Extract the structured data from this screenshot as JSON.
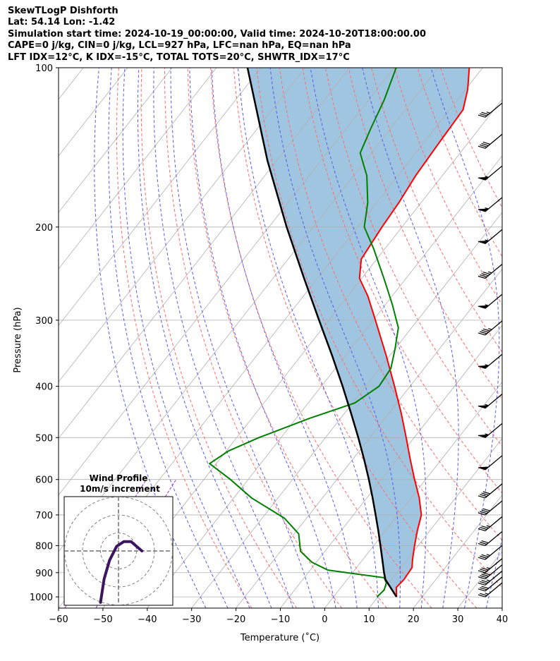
{
  "header": {
    "line1": "SkewTLogP Dishforth",
    "line2": "Lat: 54.14   Lon: -1.42",
    "line3": "Simulation start time: 2024-10-19_00:00:00, Valid time: 2024-10-20T18:00:00.00",
    "line4": "CAPE=0 j/kg, CIN=0 j/kg, LCL=927 hPa, LFC=nan hPa, EQ=nan hPa",
    "line5": "LFT IDX=12°C, K IDX=-15°C, TOTAL TOTS=20°C, SHWTR_IDX=17°C"
  },
  "colors": {
    "temperature": "#ff0000",
    "dewpoint": "#008000",
    "parcel": "#000000",
    "shade": "#a0c5e0",
    "dry_adiabat": "#ff6b6b",
    "moist_adiabat": "#5a5af0",
    "mixing_ratio": "#9b30d0",
    "isotherm": "#b0b0b0",
    "hodograph": "#3b1560"
  },
  "chart_data": {
    "type": "skew-t log-p",
    "xlabel": "Temperature (˚C)",
    "ylabel": "Pressure (hPa)",
    "xlim": [
      -60,
      40
    ],
    "ylim": [
      1050,
      100
    ],
    "x_ticks": [
      "−60",
      "−50",
      "−40",
      "−30",
      "−20",
      "−10",
      "0",
      "10",
      "20",
      "30",
      "40"
    ],
    "x_tick_values": [
      -60,
      -50,
      -40,
      -30,
      -20,
      -10,
      0,
      10,
      20,
      30,
      40
    ],
    "y_ticks": [
      "100",
      "200",
      "300",
      "400",
      "500",
      "600",
      "700",
      "800",
      "900",
      "1000"
    ],
    "y_tick_values": [
      100,
      200,
      300,
      400,
      500,
      600,
      700,
      800,
      900,
      1000
    ],
    "grid": true,
    "temperature_profile": [
      {
        "p": 1000,
        "t": 14.2
      },
      {
        "p": 960,
        "t": 12.5
      },
      {
        "p": 927,
        "t": 12.8
      },
      {
        "p": 880,
        "t": 12.5
      },
      {
        "p": 850,
        "t": 11.2
      },
      {
        "p": 800,
        "t": 9.2
      },
      {
        "p": 750,
        "t": 7.2
      },
      {
        "p": 700,
        "t": 5.3
      },
      {
        "p": 650,
        "t": 1.8
      },
      {
        "p": 600,
        "t": -2.5
      },
      {
        "p": 550,
        "t": -7.0
      },
      {
        "p": 500,
        "t": -11.8
      },
      {
        "p": 450,
        "t": -17.2
      },
      {
        "p": 400,
        "t": -23.5
      },
      {
        "p": 350,
        "t": -30.8
      },
      {
        "p": 300,
        "t": -39.5
      },
      {
        "p": 270,
        "t": -45.5
      },
      {
        "p": 250,
        "t": -50.5
      },
      {
        "p": 230,
        "t": -53.5
      },
      {
        "p": 200,
        "t": -54.5
      },
      {
        "p": 180,
        "t": -55.0
      },
      {
        "p": 160,
        "t": -56.0
      },
      {
        "p": 140,
        "t": -56.5
      },
      {
        "p": 120,
        "t": -57.0
      },
      {
        "p": 110,
        "t": -59.5
      },
      {
        "p": 100,
        "t": -63.0
      }
    ],
    "dewpoint_profile": [
      {
        "p": 1000,
        "t": 9.8
      },
      {
        "p": 970,
        "t": 10.2
      },
      {
        "p": 940,
        "t": 9.4
      },
      {
        "p": 920,
        "t": 8.0
      },
      {
        "p": 890,
        "t": -6.0
      },
      {
        "p": 860,
        "t": -11.0
      },
      {
        "p": 820,
        "t": -15.5
      },
      {
        "p": 760,
        "t": -19.0
      },
      {
        "p": 710,
        "t": -25.0
      },
      {
        "p": 650,
        "t": -36.0
      },
      {
        "p": 600,
        "t": -44.0
      },
      {
        "p": 560,
        "t": -51.5
      },
      {
        "p": 530,
        "t": -49.5
      },
      {
        "p": 500,
        "t": -45.0
      },
      {
        "p": 460,
        "t": -37.0
      },
      {
        "p": 430,
        "t": -29.5
      },
      {
        "p": 400,
        "t": -27.0
      },
      {
        "p": 370,
        "t": -27.5
      },
      {
        "p": 340,
        "t": -30.0
      },
      {
        "p": 310,
        "t": -33.0
      },
      {
        "p": 280,
        "t": -38.5
      },
      {
        "p": 250,
        "t": -45.0
      },
      {
        "p": 220,
        "t": -52.5
      },
      {
        "p": 200,
        "t": -58.5
      },
      {
        "p": 180,
        "t": -62.0
      },
      {
        "p": 160,
        "t": -67.0
      },
      {
        "p": 145,
        "t": -72.5
      },
      {
        "p": 130,
        "t": -74.5
      },
      {
        "p": 115,
        "t": -76.5
      },
      {
        "p": 100,
        "t": -79.5
      }
    ],
    "parcel_profile": [
      {
        "p": 1000,
        "t": 14.2
      },
      {
        "p": 927,
        "t": 8.6
      },
      {
        "p": 900,
        "t": 7.1
      },
      {
        "p": 850,
        "t": 4.4
      },
      {
        "p": 800,
        "t": 1.5
      },
      {
        "p": 750,
        "t": -1.6
      },
      {
        "p": 700,
        "t": -5.0
      },
      {
        "p": 650,
        "t": -8.7
      },
      {
        "p": 600,
        "t": -12.8
      },
      {
        "p": 550,
        "t": -17.4
      },
      {
        "p": 500,
        "t": -22.6
      },
      {
        "p": 450,
        "t": -28.5
      },
      {
        "p": 400,
        "t": -35.2
      },
      {
        "p": 350,
        "t": -43.0
      },
      {
        "p": 300,
        "t": -52.2
      },
      {
        "p": 250,
        "t": -63.0
      },
      {
        "p": 200,
        "t": -76.0
      },
      {
        "p": 150,
        "t": -92.0
      },
      {
        "p": 100,
        "t": -113.0
      }
    ],
    "dry_adiabats_theta_c": [
      -20,
      -10,
      0,
      10,
      20,
      30,
      40,
      50,
      60,
      70,
      80,
      90,
      100,
      110,
      120
    ],
    "moist_adiabats_start_c": [
      -30,
      -25,
      -20,
      -15,
      -10,
      -5,
      0,
      5,
      10,
      15,
      20,
      25,
      30,
      35
    ],
    "mixing_ratio_lines_t1000_c": [
      -59,
      -52
    ],
    "wind_barbs": [
      {
        "p": 1000,
        "speed_kt": 25
      },
      {
        "p": 975,
        "speed_kt": 30
      },
      {
        "p": 950,
        "speed_kt": 35
      },
      {
        "p": 925,
        "speed_kt": 40
      },
      {
        "p": 900,
        "speed_kt": 35
      },
      {
        "p": 850,
        "speed_kt": 35
      },
      {
        "p": 800,
        "speed_kt": 30
      },
      {
        "p": 750,
        "speed_kt": 35
      },
      {
        "p": 700,
        "speed_kt": 40
      },
      {
        "p": 650,
        "speed_kt": 40
      },
      {
        "p": 575,
        "speed_kt": 50
      },
      {
        "p": 500,
        "speed_kt": 55
      },
      {
        "p": 440,
        "speed_kt": 55
      },
      {
        "p": 370,
        "speed_kt": 55
      },
      {
        "p": 320,
        "speed_kt": 45
      },
      {
        "p": 285,
        "speed_kt": 55
      },
      {
        "p": 250,
        "speed_kt": 45
      },
      {
        "p": 215,
        "speed_kt": 55
      },
      {
        "p": 187,
        "speed_kt": 55
      },
      {
        "p": 163,
        "speed_kt": 55
      },
      {
        "p": 142,
        "speed_kt": 40
      },
      {
        "p": 124,
        "speed_kt": 35
      }
    ],
    "hodograph": {
      "title": "Wind Profile",
      "subtitle": "10m/s increment",
      "rings_ms": [
        10,
        20,
        30
      ],
      "trace_uv_ms": [
        [
          -10,
          -11
        ],
        [
          -8,
          -6
        ],
        [
          -5,
          -2
        ],
        [
          -1,
          1
        ],
        [
          3,
          2
        ],
        [
          7,
          2
        ],
        [
          10,
          1
        ],
        [
          13,
          0
        ]
      ]
    }
  }
}
